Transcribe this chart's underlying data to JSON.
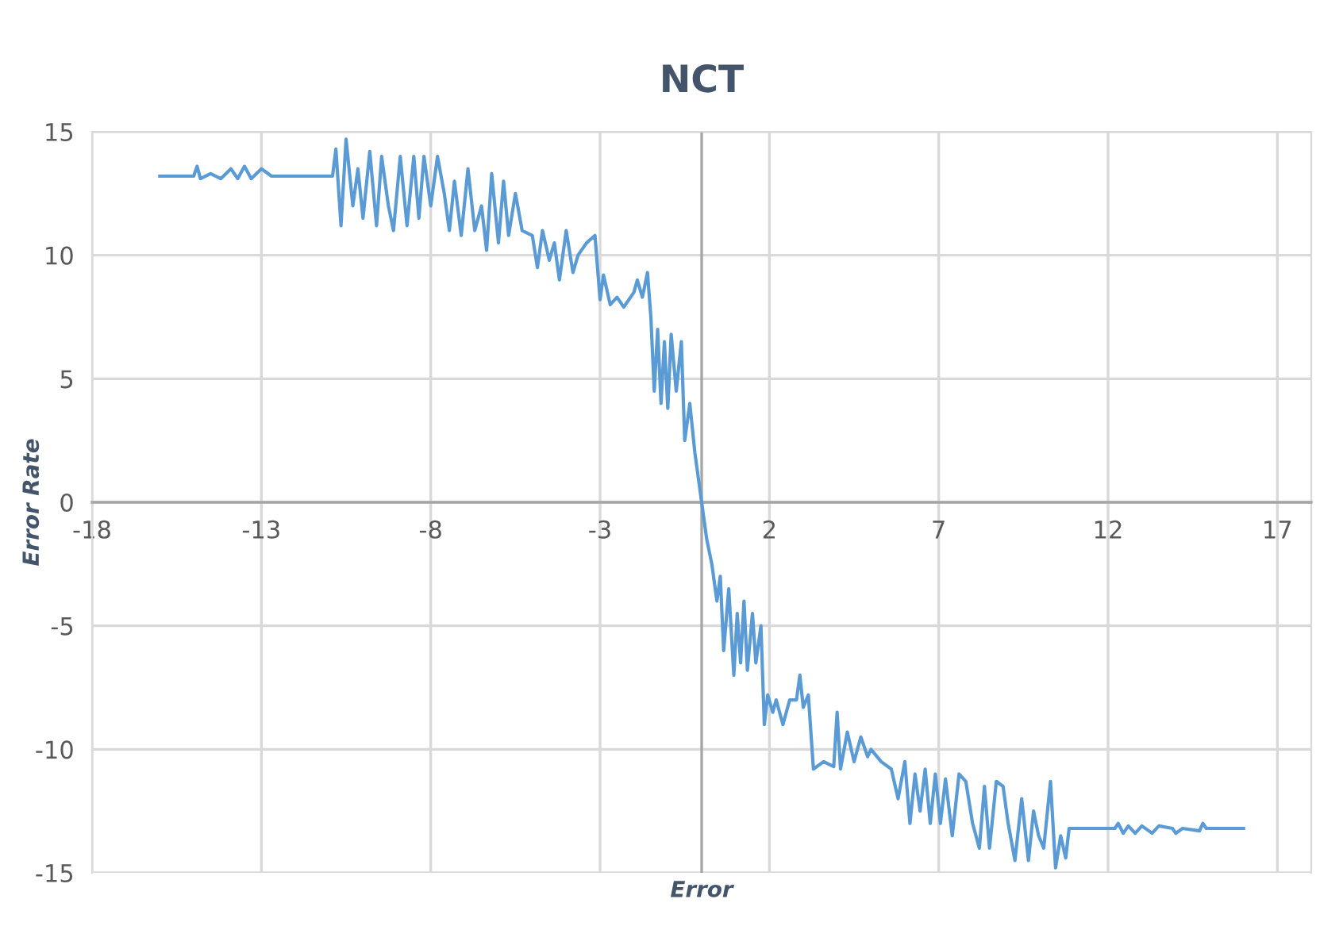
{
  "chart_data": {
    "type": "line",
    "title": "NCT",
    "xlabel": "Error",
    "ylabel": "Error Rate",
    "xlim": [
      -18,
      18
    ],
    "ylim": [
      -15,
      15
    ],
    "xticks": [
      -18,
      -13,
      -8,
      -3,
      2,
      7,
      12,
      17
    ],
    "yticks": [
      -15,
      -10,
      -5,
      0,
      5,
      10,
      15
    ],
    "grid": true,
    "marker": "none",
    "line_style": "solid",
    "series": [
      {
        "color": "#5b9bd5",
        "x": [
          -16,
          -15,
          -14.9,
          -14.8,
          -14.5,
          -14.2,
          -13.9,
          -13.7,
          -13.5,
          -13.3,
          -13.0,
          -12.7,
          -10.9,
          -10.8,
          -10.65,
          -10.5,
          -10.3,
          -10.15,
          -10.0,
          -9.8,
          -9.6,
          -9.45,
          -9.25,
          -9.1,
          -8.9,
          -8.7,
          -8.5,
          -8.35,
          -8.2,
          -8.0,
          -7.8,
          -7.6,
          -7.45,
          -7.3,
          -7.1,
          -6.9,
          -6.7,
          -6.5,
          -6.35,
          -6.2,
          -6.0,
          -5.85,
          -5.7,
          -5.5,
          -5.3,
          -5.0,
          -4.85,
          -4.7,
          -4.5,
          -4.35,
          -4.2,
          -4.0,
          -3.8,
          -3.65,
          -3.4,
          -3.15,
          -3.0,
          -2.9,
          -2.7,
          -2.5,
          -2.3,
          -2.0,
          -1.9,
          -1.75,
          -1.6,
          -1.5,
          -1.4,
          -1.3,
          -1.2,
          -1.1,
          -1.0,
          -0.9,
          -0.75,
          -0.6,
          -0.5,
          -0.35,
          -0.2,
          0,
          0.15,
          0.3,
          0.45,
          0.55,
          0.65,
          0.8,
          0.95,
          1.05,
          1.15,
          1.25,
          1.35,
          1.5,
          1.6,
          1.75,
          1.85,
          1.95,
          2.1,
          2.2,
          2.4,
          2.6,
          2.8,
          2.9,
          3.0,
          3.15,
          3.3,
          3.6,
          3.9,
          4.0,
          4.1,
          4.3,
          4.5,
          4.7,
          4.9,
          5.0,
          5.3,
          5.6,
          5.8,
          6.0,
          6.15,
          6.3,
          6.45,
          6.6,
          6.75,
          6.9,
          7.05,
          7.2,
          7.4,
          7.6,
          7.8,
          8.0,
          8.2,
          8.35,
          8.5,
          8.7,
          8.9,
          9.05,
          9.25,
          9.45,
          9.65,
          9.8,
          9.95,
          10.1,
          10.3,
          10.45,
          10.6,
          10.75,
          10.85,
          12.2,
          12.3,
          12.45,
          12.6,
          12.8,
          13.0,
          13.3,
          13.5,
          13.9,
          14.0,
          14.2,
          14.7,
          14.8,
          14.9,
          16.0
        ],
        "values": [
          13.2,
          13.2,
          13.6,
          13.1,
          13.3,
          13.1,
          13.5,
          13.1,
          13.6,
          13.1,
          13.5,
          13.2,
          13.2,
          14.3,
          11.2,
          14.7,
          12.0,
          13.5,
          11.5,
          14.2,
          11.2,
          14.0,
          12.0,
          11.0,
          14.0,
          11.2,
          14.0,
          11.5,
          14.0,
          12.0,
          14.0,
          12.5,
          11.0,
          13.0,
          10.8,
          13.5,
          11.0,
          12.0,
          10.2,
          13.3,
          10.5,
          13.0,
          10.8,
          12.5,
          11.0,
          10.8,
          9.5,
          11.0,
          9.8,
          10.5,
          9.0,
          11.0,
          9.3,
          10.0,
          10.5,
          10.8,
          8.2,
          9.2,
          8.0,
          8.3,
          7.9,
          8.5,
          9.0,
          8.3,
          9.3,
          7.5,
          4.5,
          7.0,
          4.0,
          6.5,
          3.8,
          6.8,
          4.5,
          6.5,
          2.5,
          4.0,
          2.0,
          0,
          -1.5,
          -2.5,
          -4.0,
          -3.0,
          -6.0,
          -3.5,
          -7.0,
          -4.5,
          -6.5,
          -4.0,
          -6.8,
          -4.5,
          -6.5,
          -5.0,
          -9.0,
          -7.8,
          -8.5,
          -8.0,
          -9.0,
          -8.0,
          -8.0,
          -7.0,
          -8.3,
          -7.8,
          -10.8,
          -10.5,
          -10.7,
          -8.5,
          -10.8,
          -9.3,
          -10.5,
          -9.5,
          -10.3,
          -10.0,
          -10.5,
          -10.8,
          -12.0,
          -10.5,
          -13.0,
          -11.0,
          -12.5,
          -10.8,
          -13.0,
          -11.0,
          -13.0,
          -11.2,
          -13.5,
          -11.0,
          -11.3,
          -13.0,
          -14.0,
          -11.5,
          -14.0,
          -11.3,
          -11.5,
          -13.0,
          -14.5,
          -12.0,
          -14.5,
          -12.5,
          -13.5,
          -14.0,
          -11.3,
          -14.8,
          -13.5,
          -14.4,
          -13.2,
          -13.2,
          -13.0,
          -13.4,
          -13.1,
          -13.4,
          -13.1,
          -13.4,
          -13.1,
          -13.2,
          -13.4,
          -13.2,
          -13.3,
          -13.0,
          -13.2,
          -13.2
        ]
      }
    ]
  }
}
